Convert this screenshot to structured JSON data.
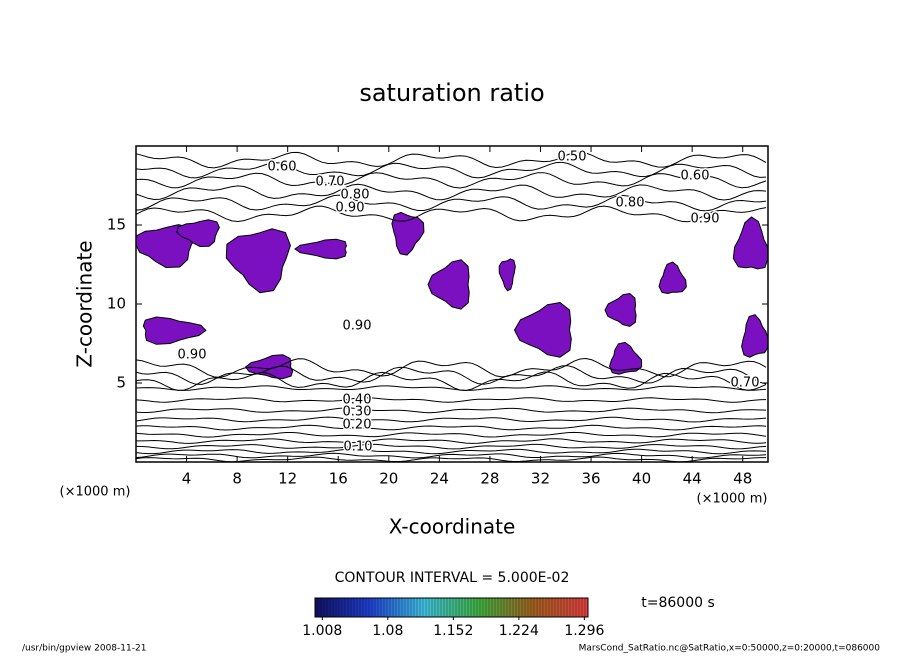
{
  "chart_data": {
    "type": "contour",
    "title": "saturation ratio",
    "x_label": "X-coordinate",
    "y_label": "Z-coordinate",
    "x_unit": "(×1000 m)",
    "y_unit": "(×1000 m)",
    "xlim": [
      0,
      50
    ],
    "xticks": [
      4,
      8,
      12,
      16,
      20,
      24,
      28,
      32,
      36,
      40,
      44,
      48
    ],
    "ylim": [
      0,
      20
    ],
    "yticks": [
      5,
      10,
      15
    ],
    "contour_labels": [
      {
        "value": 0.6,
        "label": "0.60"
      },
      {
        "value": 0.7,
        "label": "0.70"
      },
      {
        "value": 0.8,
        "label": "0.80"
      },
      {
        "value": 0.9,
        "label": "0.90"
      },
      {
        "value": 0.5,
        "label": "0.50"
      },
      {
        "value": 0.6,
        "label": "0.60"
      },
      {
        "value": 0.8,
        "label": "0.80"
      },
      {
        "value": 0.9,
        "label": "0.90"
      },
      {
        "value": 0.9,
        "label": "0.90"
      },
      {
        "value": 0.9,
        "label": "0.90"
      },
      {
        "value": 0.7,
        "label": "0.70"
      },
      {
        "value": 0.4,
        "label": "0.40"
      },
      {
        "value": 0.3,
        "label": "0.30"
      },
      {
        "value": 0.2,
        "label": "0.20"
      },
      {
        "value": 0.1,
        "label": "0.10"
      }
    ],
    "contour_interval": "CONTOUR INTERVAL = 5.000E-02",
    "shade_color": "#7b10c0",
    "colorbar_lim": [
      1.0,
      1.3
    ],
    "colorbar_ticks": [
      1.008,
      1.08,
      1.152,
      1.224,
      1.296
    ],
    "time_label": "t=86000 s",
    "footer_left": "/usr/bin/gpview  2008-11-21",
    "footer_right": "MarsCond_SatRatio.nc@SatRatio,x=0:50000,z=0:20000,t=086000"
  }
}
